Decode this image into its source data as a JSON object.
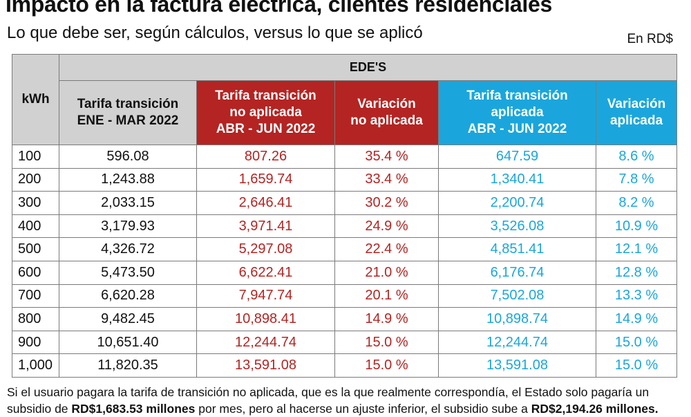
{
  "title": "Impacto en la factura eléctrica, clientes residenciales",
  "subtitle": "Lo que debe ser, según cálculos, versus lo que se aplicó",
  "unit": "En RD$",
  "colors": {
    "red": "#b42422",
    "blue": "#1aa6dc",
    "grey": "#d1d1d1"
  },
  "table": {
    "row_header": "kWh",
    "group_header": "EDE'S",
    "columns": [
      {
        "lines": [
          "Tarifa transición",
          "ENE - MAR 2022"
        ],
        "tone": "grey"
      },
      {
        "lines": [
          "Tarifa transición",
          "no aplicada",
          "ABR - JUN 2022"
        ],
        "tone": "red"
      },
      {
        "lines": [
          "Variación",
          "no aplicada"
        ],
        "tone": "red"
      },
      {
        "lines": [
          "Tarifa transición",
          "aplicada",
          "ABR - JUN 2022"
        ],
        "tone": "blue"
      },
      {
        "lines": [
          "Variación",
          "aplicada"
        ],
        "tone": "blue"
      }
    ],
    "rows": [
      {
        "kwh": "100",
        "ene_mar": "596.08",
        "no_aplicada": "807.26",
        "var_no_aplicada": "35.4 %",
        "aplicada": "647.59",
        "var_aplicada": "8.6 %"
      },
      {
        "kwh": "200",
        "ene_mar": "1,243.88",
        "no_aplicada": "1,659.74",
        "var_no_aplicada": "33.4 %",
        "aplicada": "1,340.41",
        "var_aplicada": "7.8 %"
      },
      {
        "kwh": "300",
        "ene_mar": "2,033.15",
        "no_aplicada": "2,646.41",
        "var_no_aplicada": "30.2 %",
        "aplicada": "2,200.74",
        "var_aplicada": "8.2 %"
      },
      {
        "kwh": "400",
        "ene_mar": "3,179.93",
        "no_aplicada": "3,971.41",
        "var_no_aplicada": "24.9 %",
        "aplicada": "3,526.08",
        "var_aplicada": "10.9 %"
      },
      {
        "kwh": "500",
        "ene_mar": "4,326.72",
        "no_aplicada": "5,297.08",
        "var_no_aplicada": "22.4 %",
        "aplicada": "4,851.41",
        "var_aplicada": "12.1 %"
      },
      {
        "kwh": "600",
        "ene_mar": "5,473.50",
        "no_aplicada": "6,622.41",
        "var_no_aplicada": "21.0 %",
        "aplicada": "6,176.74",
        "var_aplicada": "12.8 %"
      },
      {
        "kwh": "700",
        "ene_mar": "6,620.28",
        "no_aplicada": "7,947.74",
        "var_no_aplicada": "20.1 %",
        "aplicada": "7,502.08",
        "var_aplicada": "13.3 %"
      },
      {
        "kwh": "800",
        "ene_mar": "9,482.45",
        "no_aplicada": "10,898.41",
        "var_no_aplicada": "14.9 %",
        "aplicada": "10,898.74",
        "var_aplicada": "14.9 %"
      },
      {
        "kwh": "900",
        "ene_mar": "10,651.40",
        "no_aplicada": "12,244.74",
        "var_no_aplicada": "15.0 %",
        "aplicada": "12,244.74",
        "var_aplicada": "15.0 %"
      },
      {
        "kwh": "1,000",
        "ene_mar": "11,820.35",
        "no_aplicada": "13,591.08",
        "var_no_aplicada": "15.0 %",
        "aplicada": "13,591.08",
        "var_aplicada": "15.0 %"
      }
    ]
  },
  "footnote": {
    "part1": "Si el usuario pagara la tarifa de transición no aplicada, que es la que realmente correspondía, el Estado solo pagaría un subsidio de ",
    "bold1": "RD$1,683.53 millones",
    "part2": " por mes, pero al hacerse un ajuste inferior, el subsidio sube a ",
    "bold2": "RD$2,194.26 millones."
  },
  "chart_data": {
    "type": "table",
    "title": "Impacto en la factura eléctrica, clientes residenciales",
    "subtitle": "Lo que debe ser, según cálculos, versus lo que se aplicó",
    "unit": "En RD$",
    "columns": [
      "kWh",
      "Tarifa transición ENE - MAR 2022",
      "Tarifa transición no aplicada ABR - JUN 2022",
      "Variación no aplicada",
      "Tarifa transición aplicada ABR - JUN 2022",
      "Variación aplicada"
    ],
    "values": [
      [
        100,
        596.08,
        807.26,
        35.4,
        647.59,
        8.6
      ],
      [
        200,
        1243.88,
        1659.74,
        33.4,
        1340.41,
        7.8
      ],
      [
        300,
        2033.15,
        2646.41,
        30.2,
        2200.74,
        8.2
      ],
      [
        400,
        3179.93,
        3971.41,
        24.9,
        3526.08,
        10.9
      ],
      [
        500,
        4326.72,
        5297.08,
        22.4,
        4851.41,
        12.1
      ],
      [
        600,
        5473.5,
        6622.41,
        21.0,
        6176.74,
        12.8
      ],
      [
        700,
        6620.28,
        7947.74,
        20.1,
        7502.08,
        13.3
      ],
      [
        800,
        9482.45,
        10898.41,
        14.9,
        10898.74,
        14.9
      ],
      [
        900,
        10651.4,
        12244.74,
        15.0,
        12244.74,
        15.0
      ],
      [
        1000,
        11820.35,
        13591.08,
        15.0,
        13591.08,
        15.0
      ]
    ]
  }
}
